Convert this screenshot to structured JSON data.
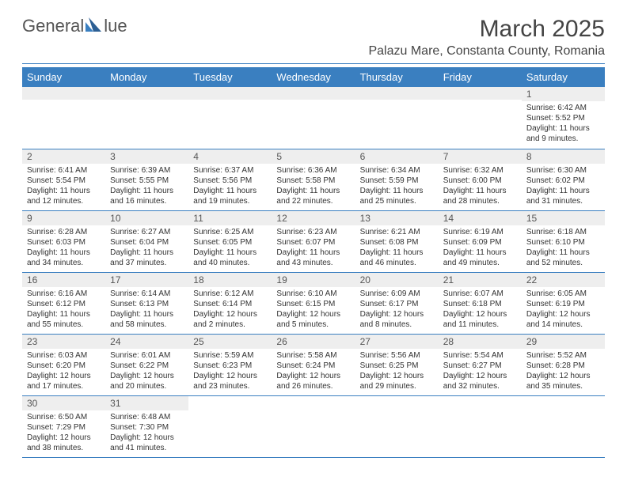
{
  "logo": {
    "text_left": "General",
    "text_right": "lue",
    "brand_color": "#3a7fc0"
  },
  "title": "March 2025",
  "location": "Palazu Mare, Constanta County, Romania",
  "colors": {
    "header_bg": "#3a7fc0",
    "header_text": "#ffffff",
    "daynum_bg": "#eeeeee",
    "border": "#3a7fc0"
  },
  "weekdays": [
    "Sunday",
    "Monday",
    "Tuesday",
    "Wednesday",
    "Thursday",
    "Friday",
    "Saturday"
  ],
  "weeks": [
    [
      null,
      null,
      null,
      null,
      null,
      null,
      {
        "n": "1",
        "sr": "Sunrise: 6:42 AM",
        "ss": "Sunset: 5:52 PM",
        "d1": "Daylight: 11 hours",
        "d2": "and 9 minutes."
      }
    ],
    [
      {
        "n": "2",
        "sr": "Sunrise: 6:41 AM",
        "ss": "Sunset: 5:54 PM",
        "d1": "Daylight: 11 hours",
        "d2": "and 12 minutes."
      },
      {
        "n": "3",
        "sr": "Sunrise: 6:39 AM",
        "ss": "Sunset: 5:55 PM",
        "d1": "Daylight: 11 hours",
        "d2": "and 16 minutes."
      },
      {
        "n": "4",
        "sr": "Sunrise: 6:37 AM",
        "ss": "Sunset: 5:56 PM",
        "d1": "Daylight: 11 hours",
        "d2": "and 19 minutes."
      },
      {
        "n": "5",
        "sr": "Sunrise: 6:36 AM",
        "ss": "Sunset: 5:58 PM",
        "d1": "Daylight: 11 hours",
        "d2": "and 22 minutes."
      },
      {
        "n": "6",
        "sr": "Sunrise: 6:34 AM",
        "ss": "Sunset: 5:59 PM",
        "d1": "Daylight: 11 hours",
        "d2": "and 25 minutes."
      },
      {
        "n": "7",
        "sr": "Sunrise: 6:32 AM",
        "ss": "Sunset: 6:00 PM",
        "d1": "Daylight: 11 hours",
        "d2": "and 28 minutes."
      },
      {
        "n": "8",
        "sr": "Sunrise: 6:30 AM",
        "ss": "Sunset: 6:02 PM",
        "d1": "Daylight: 11 hours",
        "d2": "and 31 minutes."
      }
    ],
    [
      {
        "n": "9",
        "sr": "Sunrise: 6:28 AM",
        "ss": "Sunset: 6:03 PM",
        "d1": "Daylight: 11 hours",
        "d2": "and 34 minutes."
      },
      {
        "n": "10",
        "sr": "Sunrise: 6:27 AM",
        "ss": "Sunset: 6:04 PM",
        "d1": "Daylight: 11 hours",
        "d2": "and 37 minutes."
      },
      {
        "n": "11",
        "sr": "Sunrise: 6:25 AM",
        "ss": "Sunset: 6:05 PM",
        "d1": "Daylight: 11 hours",
        "d2": "and 40 minutes."
      },
      {
        "n": "12",
        "sr": "Sunrise: 6:23 AM",
        "ss": "Sunset: 6:07 PM",
        "d1": "Daylight: 11 hours",
        "d2": "and 43 minutes."
      },
      {
        "n": "13",
        "sr": "Sunrise: 6:21 AM",
        "ss": "Sunset: 6:08 PM",
        "d1": "Daylight: 11 hours",
        "d2": "and 46 minutes."
      },
      {
        "n": "14",
        "sr": "Sunrise: 6:19 AM",
        "ss": "Sunset: 6:09 PM",
        "d1": "Daylight: 11 hours",
        "d2": "and 49 minutes."
      },
      {
        "n": "15",
        "sr": "Sunrise: 6:18 AM",
        "ss": "Sunset: 6:10 PM",
        "d1": "Daylight: 11 hours",
        "d2": "and 52 minutes."
      }
    ],
    [
      {
        "n": "16",
        "sr": "Sunrise: 6:16 AM",
        "ss": "Sunset: 6:12 PM",
        "d1": "Daylight: 11 hours",
        "d2": "and 55 minutes."
      },
      {
        "n": "17",
        "sr": "Sunrise: 6:14 AM",
        "ss": "Sunset: 6:13 PM",
        "d1": "Daylight: 11 hours",
        "d2": "and 58 minutes."
      },
      {
        "n": "18",
        "sr": "Sunrise: 6:12 AM",
        "ss": "Sunset: 6:14 PM",
        "d1": "Daylight: 12 hours",
        "d2": "and 2 minutes."
      },
      {
        "n": "19",
        "sr": "Sunrise: 6:10 AM",
        "ss": "Sunset: 6:15 PM",
        "d1": "Daylight: 12 hours",
        "d2": "and 5 minutes."
      },
      {
        "n": "20",
        "sr": "Sunrise: 6:09 AM",
        "ss": "Sunset: 6:17 PM",
        "d1": "Daylight: 12 hours",
        "d2": "and 8 minutes."
      },
      {
        "n": "21",
        "sr": "Sunrise: 6:07 AM",
        "ss": "Sunset: 6:18 PM",
        "d1": "Daylight: 12 hours",
        "d2": "and 11 minutes."
      },
      {
        "n": "22",
        "sr": "Sunrise: 6:05 AM",
        "ss": "Sunset: 6:19 PM",
        "d1": "Daylight: 12 hours",
        "d2": "and 14 minutes."
      }
    ],
    [
      {
        "n": "23",
        "sr": "Sunrise: 6:03 AM",
        "ss": "Sunset: 6:20 PM",
        "d1": "Daylight: 12 hours",
        "d2": "and 17 minutes."
      },
      {
        "n": "24",
        "sr": "Sunrise: 6:01 AM",
        "ss": "Sunset: 6:22 PM",
        "d1": "Daylight: 12 hours",
        "d2": "and 20 minutes."
      },
      {
        "n": "25",
        "sr": "Sunrise: 5:59 AM",
        "ss": "Sunset: 6:23 PM",
        "d1": "Daylight: 12 hours",
        "d2": "and 23 minutes."
      },
      {
        "n": "26",
        "sr": "Sunrise: 5:58 AM",
        "ss": "Sunset: 6:24 PM",
        "d1": "Daylight: 12 hours",
        "d2": "and 26 minutes."
      },
      {
        "n": "27",
        "sr": "Sunrise: 5:56 AM",
        "ss": "Sunset: 6:25 PM",
        "d1": "Daylight: 12 hours",
        "d2": "and 29 minutes."
      },
      {
        "n": "28",
        "sr": "Sunrise: 5:54 AM",
        "ss": "Sunset: 6:27 PM",
        "d1": "Daylight: 12 hours",
        "d2": "and 32 minutes."
      },
      {
        "n": "29",
        "sr": "Sunrise: 5:52 AM",
        "ss": "Sunset: 6:28 PM",
        "d1": "Daylight: 12 hours",
        "d2": "and 35 minutes."
      }
    ],
    [
      {
        "n": "30",
        "sr": "Sunrise: 6:50 AM",
        "ss": "Sunset: 7:29 PM",
        "d1": "Daylight: 12 hours",
        "d2": "and 38 minutes."
      },
      {
        "n": "31",
        "sr": "Sunrise: 6:48 AM",
        "ss": "Sunset: 7:30 PM",
        "d1": "Daylight: 12 hours",
        "d2": "and 41 minutes."
      },
      null,
      null,
      null,
      null,
      null
    ]
  ]
}
